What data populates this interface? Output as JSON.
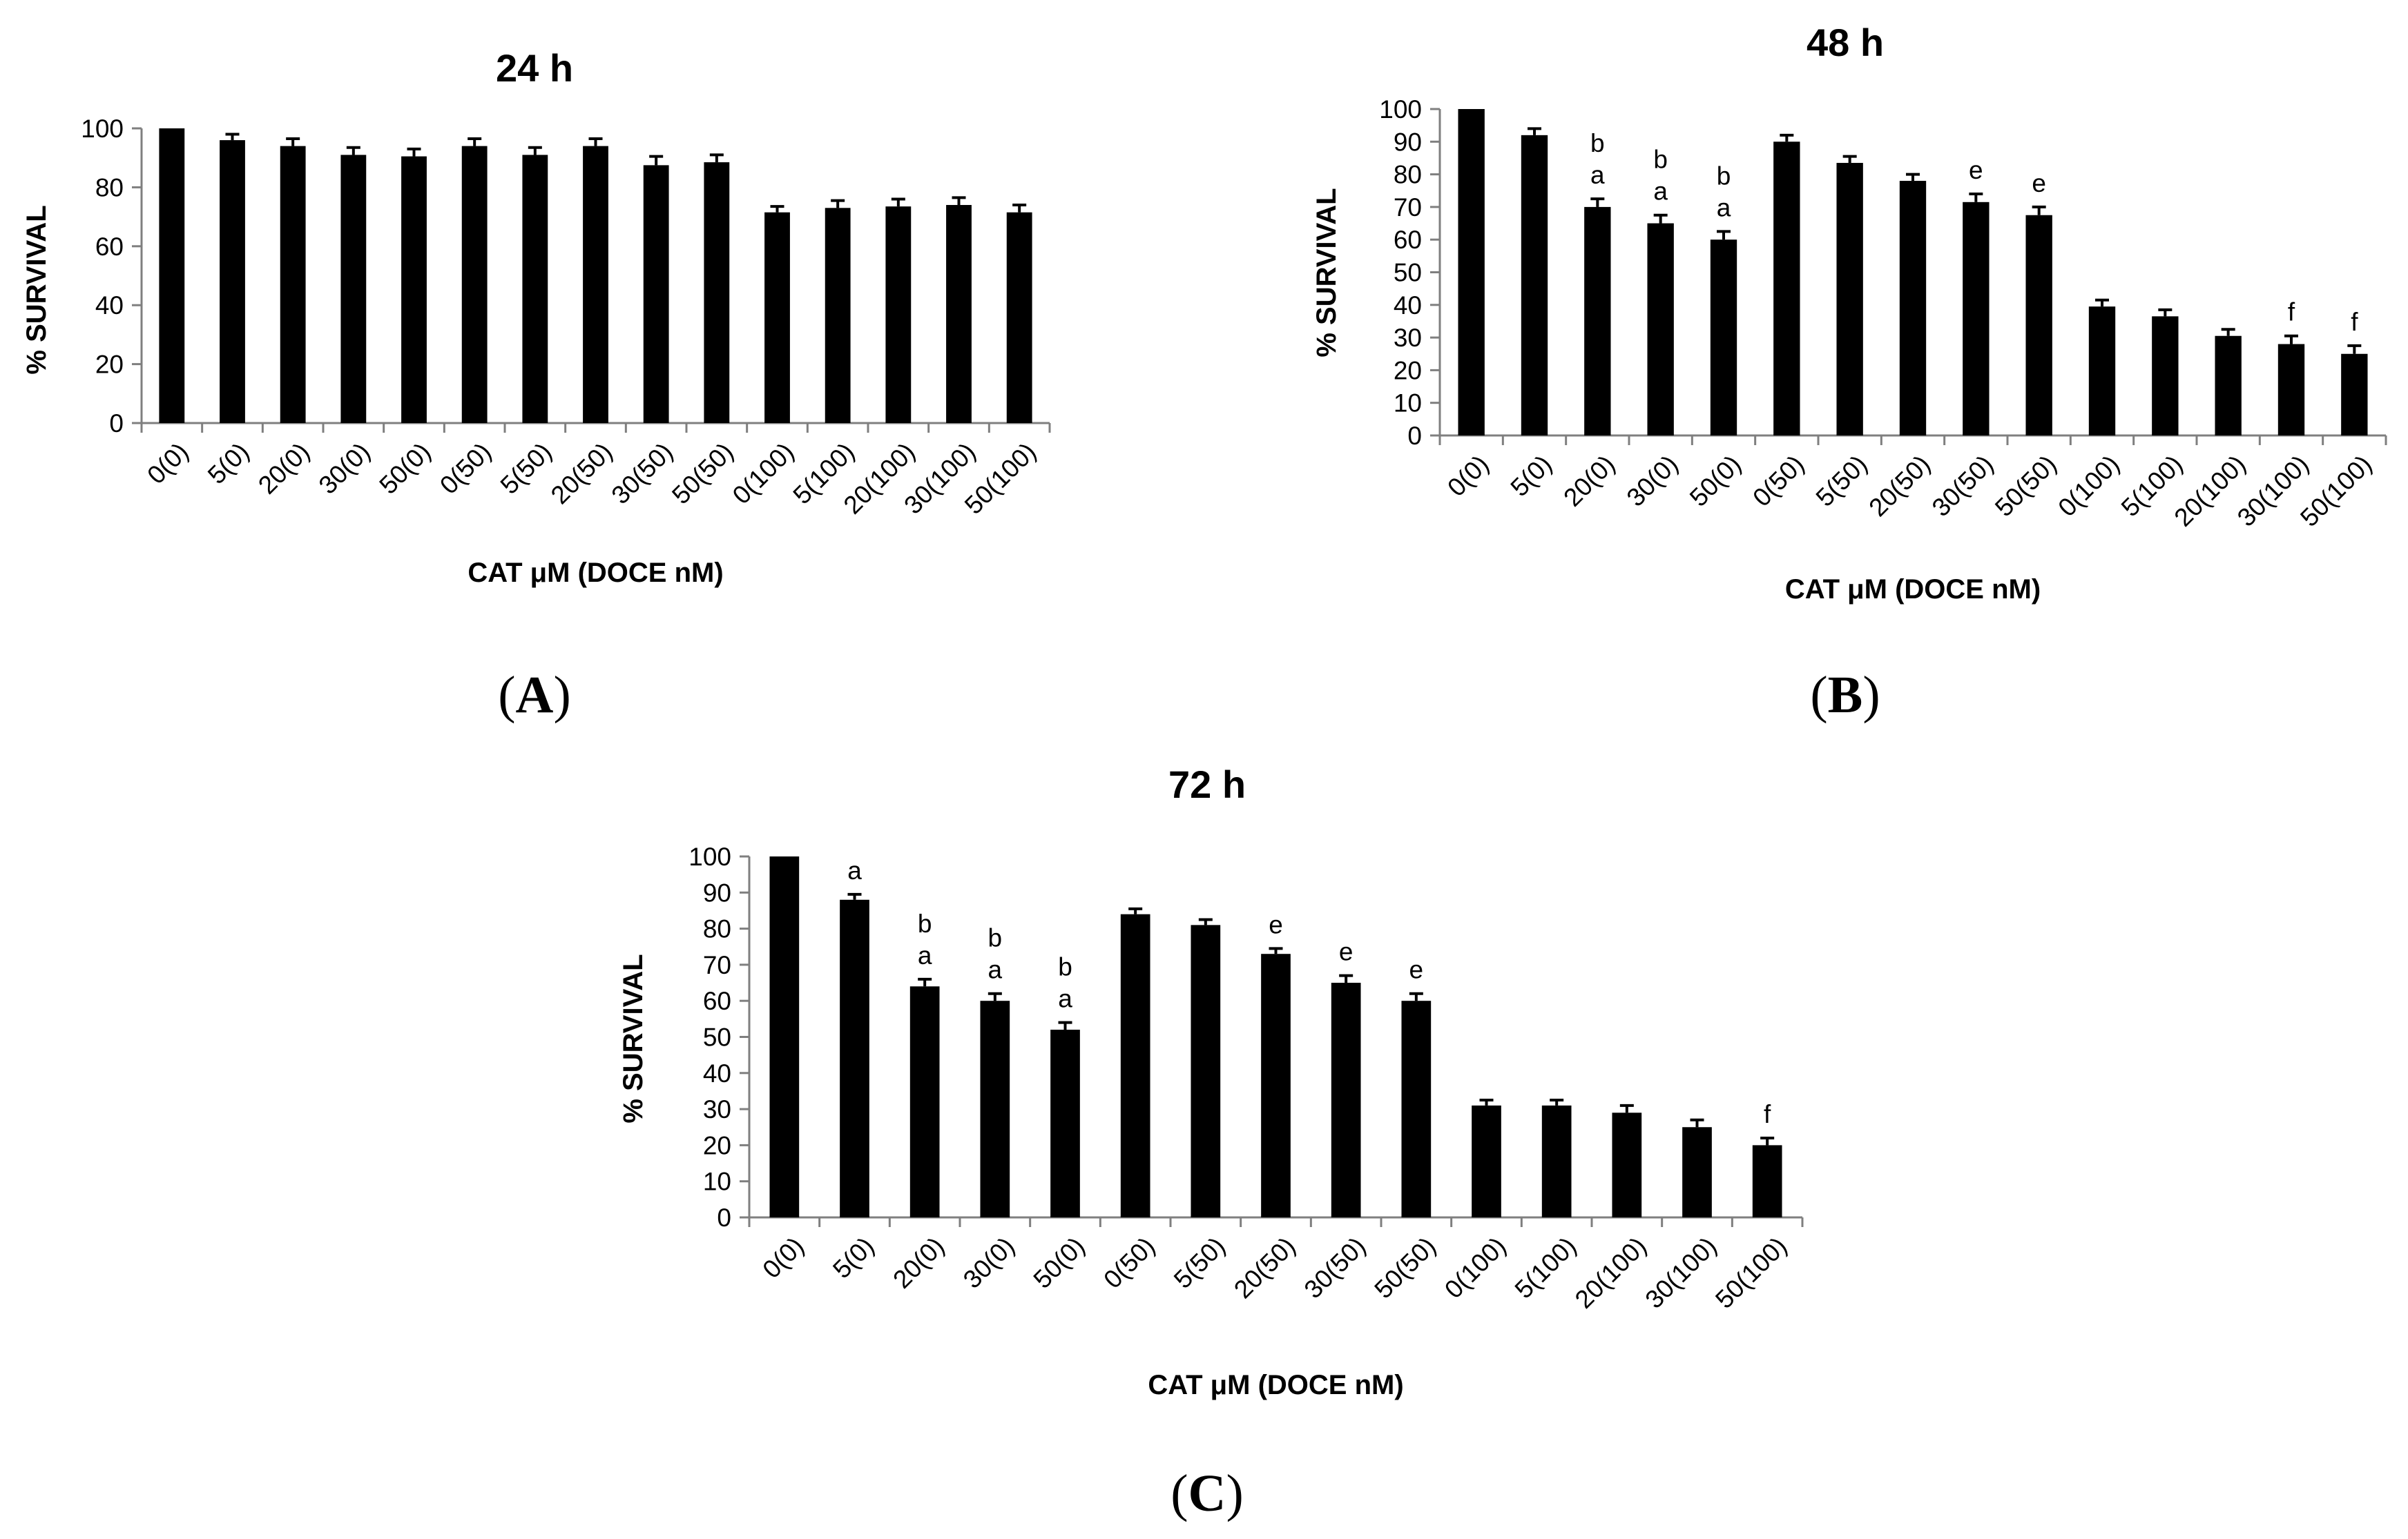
{
  "chart_data": [
    {
      "id": "A",
      "type": "bar",
      "title": "24 h",
      "panel_label": "A",
      "xlabel": "CAT μM (DOCE nM)",
      "ylabel": "% SURVIVAL",
      "ylim": [
        0,
        100
      ],
      "yticks": [
        0,
        20,
        40,
        60,
        80,
        100
      ],
      "categories": [
        "0(0)",
        "5(0)",
        "20(0)",
        "30(0)",
        "50(0)",
        "0(50)",
        "5(50)",
        "20(50)",
        "30(50)",
        "50(50)",
        "0(100)",
        "5(100)",
        "20(100)",
        "30(100)",
        "50(100)"
      ],
      "values": [
        100,
        96,
        94,
        91,
        90.5,
        94,
        91,
        94,
        87.5,
        88.5,
        71.5,
        73,
        73.5,
        74,
        71.5
      ],
      "errors": [
        0,
        2,
        2.5,
        2.5,
        2.5,
        2.5,
        2.5,
        2.5,
        3,
        2.5,
        2,
        2.5,
        2.5,
        2.5,
        2.5
      ],
      "annotations": [
        [
          "",
          ""
        ],
        [
          "",
          ""
        ],
        [
          "",
          ""
        ],
        [
          "",
          ""
        ],
        [
          "",
          ""
        ],
        [
          "",
          ""
        ],
        [
          "",
          ""
        ],
        [
          "",
          ""
        ],
        [
          "",
          ""
        ],
        [
          "",
          ""
        ],
        [
          "",
          ""
        ],
        [
          "",
          ""
        ],
        [
          "",
          ""
        ],
        [
          "",
          ""
        ],
        [
          "",
          ""
        ]
      ]
    },
    {
      "id": "B",
      "type": "bar",
      "title": "48 h",
      "panel_label": "B",
      "xlabel": "CAT μM (DOCE nM)",
      "ylabel": "% SURVIVAL",
      "ylim": [
        0,
        100
      ],
      "yticks": [
        0,
        10,
        20,
        30,
        40,
        50,
        60,
        70,
        80,
        90,
        100
      ],
      "categories": [
        "0(0)",
        "5(0)",
        "20(0)",
        "30(0)",
        "50(0)",
        "0(50)",
        "5(50)",
        "20(50)",
        "30(50)",
        "50(50)",
        "0(100)",
        "5(100)",
        "20(100)",
        "30(100)",
        "50(100)"
      ],
      "values": [
        100,
        92,
        70,
        65,
        60,
        90,
        83.5,
        78,
        71.5,
        67.5,
        39.5,
        36.5,
        30.5,
        28,
        25
      ],
      "errors": [
        0,
        2,
        2.5,
        2.5,
        2.5,
        2,
        2,
        2,
        2.5,
        2.5,
        2,
        2,
        2,
        2.5,
        2.5
      ],
      "annotations": [
        [
          "",
          ""
        ],
        [
          "",
          ""
        ],
        [
          "a",
          "b"
        ],
        [
          "a",
          "b"
        ],
        [
          "a",
          "b"
        ],
        [
          "",
          ""
        ],
        [
          "",
          ""
        ],
        [
          "",
          ""
        ],
        [
          "e",
          ""
        ],
        [
          "e",
          ""
        ],
        [
          "",
          ""
        ],
        [
          "",
          ""
        ],
        [
          "",
          ""
        ],
        [
          "f",
          ""
        ],
        [
          "f",
          ""
        ]
      ]
    },
    {
      "id": "C",
      "type": "bar",
      "title": "72 h",
      "panel_label": "C",
      "xlabel": "CAT μM (DOCE nM)",
      "ylabel": "% SURVIVAL",
      "ylim": [
        0,
        100
      ],
      "yticks": [
        0,
        10,
        20,
        30,
        40,
        50,
        60,
        70,
        80,
        90,
        100
      ],
      "categories": [
        "0(0)",
        "5(0)",
        "20(0)",
        "30(0)",
        "50(0)",
        "0(50)",
        "5(50)",
        "20(50)",
        "30(50)",
        "50(50)",
        "0(100)",
        "5(100)",
        "20(100)",
        "30(100)",
        "50(100)"
      ],
      "values": [
        100,
        88,
        64,
        60,
        52,
        84,
        81,
        73,
        65,
        60,
        31,
        31,
        29,
        25,
        20
      ],
      "errors": [
        0,
        1.5,
        2,
        2,
        2,
        1.5,
        1.5,
        1.5,
        2,
        2,
        1.5,
        1.5,
        2,
        2,
        2
      ],
      "annotations": [
        [
          "",
          ""
        ],
        [
          "a",
          ""
        ],
        [
          "a",
          "b"
        ],
        [
          "a",
          "b"
        ],
        [
          "a",
          "b"
        ],
        [
          "",
          ""
        ],
        [
          "",
          ""
        ],
        [
          "e",
          ""
        ],
        [
          "e",
          ""
        ],
        [
          "e",
          ""
        ],
        [
          "",
          ""
        ],
        [
          "",
          ""
        ],
        [
          "",
          ""
        ],
        [
          "",
          ""
        ],
        [
          "f",
          ""
        ]
      ]
    }
  ]
}
